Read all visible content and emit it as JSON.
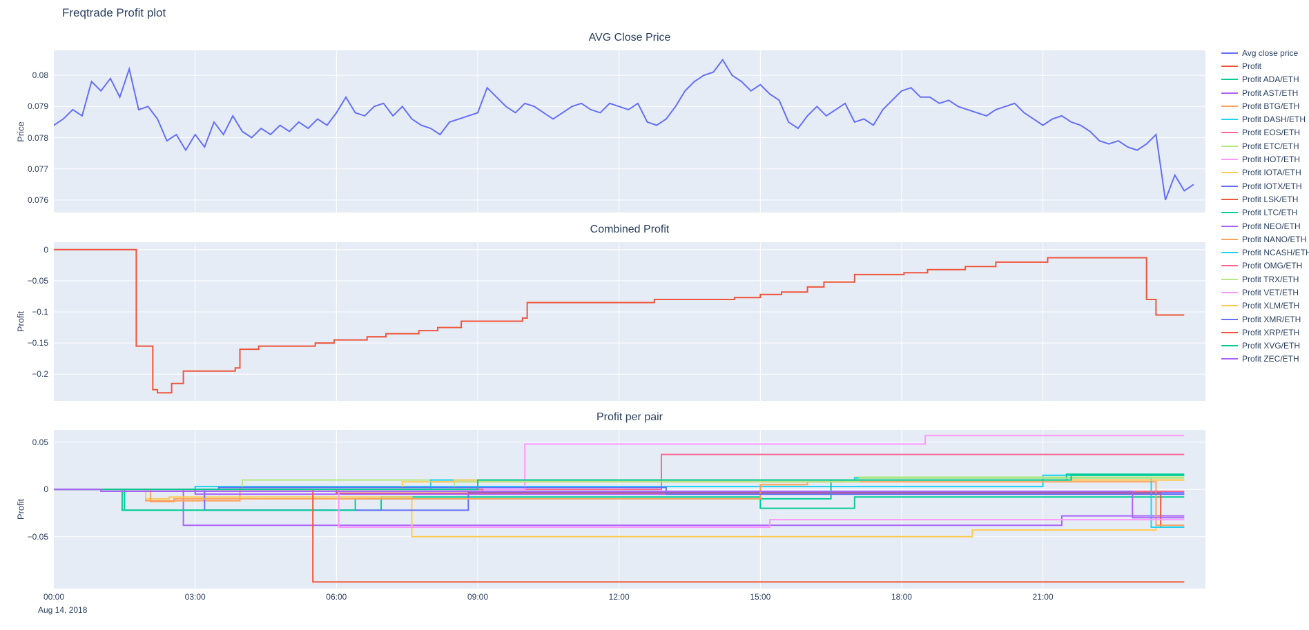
{
  "title": "Freqtrade Profit plot",
  "date_label": "Aug 14, 2018",
  "colors": {
    "text": "#2a3f5f",
    "plot_bg": "#e5ecf6",
    "grid": "#ffffff",
    "page_bg": "#ffffff"
  },
  "x_axis": {
    "labels": [
      "00:00",
      "03:00",
      "06:00",
      "09:00",
      "12:00",
      "15:00",
      "18:00",
      "21:00"
    ],
    "values": [
      0,
      3,
      6,
      9,
      12,
      15,
      18,
      21
    ],
    "unit": "hours"
  },
  "chart_data": [
    {
      "type": "line",
      "title": "AVG Close Price",
      "ylabel": "Price",
      "xlim": [
        0,
        24.45
      ],
      "ylim": [
        0.0756,
        0.0808
      ],
      "yticks": {
        "labels": [
          "0.076",
          "0.077",
          "0.078",
          "0.079",
          "0.08"
        ],
        "values": [
          0.076,
          0.077,
          0.078,
          0.079,
          0.08
        ]
      },
      "series": [
        {
          "name": "Avg close price",
          "color": "#636efa",
          "mode": "linear",
          "t0": 0,
          "dt": 0.2,
          "values": [
            0.0784,
            0.0786,
            0.0789,
            0.0787,
            0.0798,
            0.0795,
            0.0799,
            0.0793,
            0.0802,
            0.0789,
            0.079,
            0.0786,
            0.0779,
            0.0781,
            0.0776,
            0.0781,
            0.0777,
            0.0785,
            0.0781,
            0.0787,
            0.0782,
            0.078,
            0.0783,
            0.0781,
            0.0784,
            0.0782,
            0.0785,
            0.0783,
            0.0786,
            0.0784,
            0.0788,
            0.0793,
            0.0788,
            0.0787,
            0.079,
            0.0791,
            0.0787,
            0.079,
            0.0786,
            0.0784,
            0.0783,
            0.0781,
            0.0785,
            0.0786,
            0.0787,
            0.0788,
            0.0796,
            0.0793,
            0.079,
            0.0788,
            0.0791,
            0.079,
            0.0788,
            0.0786,
            0.0788,
            0.079,
            0.0791,
            0.0789,
            0.0788,
            0.0791,
            0.079,
            0.0789,
            0.0791,
            0.0785,
            0.0784,
            0.0786,
            0.079,
            0.0795,
            0.0798,
            0.08,
            0.0801,
            0.0805,
            0.08,
            0.0798,
            0.0795,
            0.0797,
            0.0794,
            0.0792,
            0.0785,
            0.0783,
            0.0787,
            0.079,
            0.0787,
            0.0789,
            0.0791,
            0.0785,
            0.0786,
            0.0784,
            0.0789,
            0.0792,
            0.0795,
            0.0796,
            0.0793,
            0.0793,
            0.0791,
            0.0792,
            0.079,
            0.0789,
            0.0788,
            0.0787,
            0.0789,
            0.079,
            0.0791,
            0.0788,
            0.0786,
            0.0784,
            0.0786,
            0.0787,
            0.0785,
            0.0784,
            0.0782,
            0.0779,
            0.0778,
            0.0779,
            0.0777,
            0.0776,
            0.0778,
            0.0781,
            0.076,
            0.0768,
            0.0763,
            0.0765
          ]
        }
      ]
    },
    {
      "type": "line",
      "title": "Combined Profit",
      "ylabel": "Profit",
      "xlim": [
        0,
        24.45
      ],
      "ylim": [
        -0.243,
        0.012
      ],
      "yticks": {
        "labels": [
          "0",
          "−0.05",
          "−0.1",
          "−0.15",
          "−0.2"
        ],
        "values": [
          0,
          -0.05,
          -0.1,
          -0.15,
          -0.2
        ]
      },
      "series": [
        {
          "name": "Profit",
          "color": "#EF553B",
          "mode": "step",
          "t_end": 24,
          "points": [
            [
              0,
              0
            ],
            [
              1.75,
              -0.155
            ],
            [
              2.1,
              -0.225
            ],
            [
              2.2,
              -0.23
            ],
            [
              2.5,
              -0.215
            ],
            [
              2.75,
              -0.195
            ],
            [
              3.85,
              -0.19
            ],
            [
              3.95,
              -0.16
            ],
            [
              4.35,
              -0.155
            ],
            [
              5.55,
              -0.15
            ],
            [
              5.95,
              -0.145
            ],
            [
              6.65,
              -0.14
            ],
            [
              7.05,
              -0.135
            ],
            [
              7.75,
              -0.13
            ],
            [
              8.15,
              -0.125
            ],
            [
              8.65,
              -0.115
            ],
            [
              9.95,
              -0.11
            ],
            [
              10.05,
              -0.085
            ],
            [
              12.75,
              -0.08
            ],
            [
              14.45,
              -0.077
            ],
            [
              15.0,
              -0.072
            ],
            [
              15.45,
              -0.068
            ],
            [
              16.0,
              -0.06
            ],
            [
              16.35,
              -0.052
            ],
            [
              17.0,
              -0.04
            ],
            [
              18.05,
              -0.037
            ],
            [
              18.55,
              -0.032
            ],
            [
              19.35,
              -0.027
            ],
            [
              20.0,
              -0.02
            ],
            [
              21.1,
              -0.013
            ],
            [
              23.2,
              -0.08
            ],
            [
              23.4,
              -0.105
            ]
          ]
        }
      ]
    },
    {
      "type": "line",
      "title": "Profit per pair",
      "ylabel": "Profit",
      "xlim": [
        0,
        24.45
      ],
      "ylim": [
        -0.105,
        0.063
      ],
      "yticks": {
        "labels": [
          "0.05",
          "0",
          "−0.05"
        ],
        "values": [
          0.05,
          0,
          -0.05
        ]
      },
      "series": [
        {
          "name": "Profit ADA/ETH",
          "color": "#00cc96",
          "mode": "step",
          "t_end": 24,
          "points": [
            [
              0,
              0
            ],
            [
              1.45,
              -0.022
            ],
            [
              6.95,
              -0.008
            ],
            [
              15.0,
              -0.02
            ],
            [
              17.0,
              -0.008
            ]
          ]
        },
        {
          "name": "Profit AST/ETH",
          "color": "#ab63fa",
          "mode": "step",
          "t_end": 24,
          "points": [
            [
              0,
              0
            ],
            [
              2.75,
              -0.038
            ],
            [
              21.4,
              -0.028
            ]
          ]
        },
        {
          "name": "Profit BTG/ETH",
          "color": "#FFA15A",
          "mode": "step",
          "t_end": 24,
          "points": [
            [
              0,
              0
            ],
            [
              1.95,
              -0.012
            ],
            [
              3.95,
              0.003
            ],
            [
              8.0,
              0.008
            ],
            [
              16.7,
              0.01
            ]
          ]
        },
        {
          "name": "Profit DASH/ETH",
          "color": "#19d3f3",
          "mode": "step",
          "t_end": 24,
          "points": [
            [
              0,
              0
            ],
            [
              3.0,
              0.003
            ],
            [
              21.0,
              0.015
            ]
          ]
        },
        {
          "name": "Profit EOS/ETH",
          "color": "#FF6692",
          "mode": "step",
          "t_end": 24,
          "points": [
            [
              0,
              0
            ],
            [
              12.9,
              0.037
            ]
          ]
        },
        {
          "name": "Profit ETC/ETH",
          "color": "#B6E880",
          "mode": "step",
          "t_end": 24,
          "points": [
            [
              0,
              0
            ],
            [
              4.0,
              0.01
            ],
            [
              17.0,
              0.013
            ]
          ]
        },
        {
          "name": "Profit HOT/ETH",
          "color": "#FF97FF",
          "mode": "step",
          "t_end": 24,
          "points": [
            [
              0,
              0
            ],
            [
              10.0,
              0.048
            ],
            [
              18.5,
              0.057
            ]
          ]
        },
        {
          "name": "Profit IOTA/ETH",
          "color": "#FECB52",
          "mode": "step",
          "t_end": 24,
          "points": [
            [
              0,
              0
            ],
            [
              1.95,
              -0.01
            ],
            [
              2.45,
              -0.008
            ],
            [
              7.6,
              -0.05
            ],
            [
              19.5,
              -0.043
            ],
            [
              23.4,
              -0.04
            ]
          ]
        },
        {
          "name": "Profit IOTX/ETH",
          "color": "#636efa",
          "mode": "step",
          "t_end": 24,
          "points": [
            [
              0,
              0
            ],
            [
              3.2,
              -0.022
            ],
            [
              8.8,
              -0.003
            ]
          ]
        },
        {
          "name": "Profit LSK/ETH",
          "color": "#EF553B",
          "mode": "step",
          "t_end": 24,
          "points": [
            [
              0,
              0
            ],
            [
              6.0,
              -0.004
            ],
            [
              23.5,
              -0.04
            ]
          ]
        },
        {
          "name": "Profit LTC/ETH",
          "color": "#00cc96",
          "mode": "step",
          "t_end": 24,
          "points": [
            [
              0,
              0
            ],
            [
              1.5,
              -0.022
            ],
            [
              6.4,
              -0.01
            ],
            [
              16.5,
              0.01
            ],
            [
              21.5,
              0.016
            ]
          ]
        },
        {
          "name": "Profit NEO/ETH",
          "color": "#ab63fa",
          "mode": "step",
          "t_end": 24,
          "points": [
            [
              0,
              0
            ],
            [
              3.0,
              -0.005
            ]
          ]
        },
        {
          "name": "Profit NANO/ETH",
          "color": "#FFA15A",
          "mode": "step",
          "t_end": 24,
          "points": [
            [
              0,
              0
            ],
            [
              2.05,
              -0.013
            ],
            [
              2.55,
              -0.01
            ],
            [
              15.0,
              0.005
            ],
            [
              16.0,
              0.008
            ],
            [
              23.4,
              -0.038
            ]
          ]
        },
        {
          "name": "Profit NCASH/ETH",
          "color": "#19d3f3",
          "mode": "step",
          "t_end": 24,
          "points": [
            [
              0,
              0
            ],
            [
              8.0,
              0.01
            ],
            [
              17.0,
              0.012
            ],
            [
              23.3,
              -0.04
            ]
          ]
        },
        {
          "name": "Profit OMG/ETH",
          "color": "#FF6692",
          "mode": "step",
          "t_end": 24,
          "points": [
            [
              0,
              0
            ],
            [
              9.1,
              -0.002
            ]
          ]
        },
        {
          "name": "Profit TRX/ETH",
          "color": "#B6E880",
          "mode": "step",
          "t_end": 24,
          "points": [
            [
              0,
              0
            ],
            [
              8.5,
              0.008
            ],
            [
              17.1,
              0.012
            ]
          ]
        },
        {
          "name": "Profit VET/ETH",
          "color": "#FF97FF",
          "mode": "step",
          "t_end": 24,
          "points": [
            [
              0,
              0
            ],
            [
              6.05,
              -0.04
            ],
            [
              15.2,
              -0.032
            ]
          ]
        },
        {
          "name": "Profit XLM/ETH",
          "color": "#FECB52",
          "mode": "step",
          "t_end": 24,
          "points": [
            [
              0,
              0
            ],
            [
              7.4,
              0.008
            ],
            [
              8.5,
              0.01
            ]
          ]
        },
        {
          "name": "Profit XMR/ETH",
          "color": "#636efa",
          "mode": "step",
          "t_end": 24,
          "points": [
            [
              0,
              0
            ],
            [
              3.5,
              0.002
            ],
            [
              13.0,
              -0.005
            ]
          ]
        },
        {
          "name": "Profit XRP/ETH",
          "color": "#EF553B",
          "mode": "step",
          "t_end": 24,
          "points": [
            [
              0,
              0
            ],
            [
              5.5,
              -0.098
            ]
          ]
        },
        {
          "name": "Profit XVG/ETH",
          "color": "#00cc96",
          "mode": "step",
          "t_end": 24,
          "points": [
            [
              0,
              0
            ],
            [
              9.0,
              0.01
            ],
            [
              21.6,
              0.015
            ]
          ]
        },
        {
          "name": "Profit ZEC/ETH",
          "color": "#ab63fa",
          "mode": "step",
          "t_end": 24,
          "points": [
            [
              0,
              0
            ],
            [
              1.0,
              -0.002
            ],
            [
              22.9,
              -0.03
            ]
          ]
        }
      ]
    }
  ]
}
